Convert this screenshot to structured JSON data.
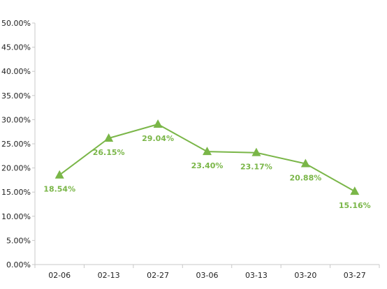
{
  "chart_data": {
    "type": "line",
    "categories": [
      "02-06",
      "02-13",
      "02-27",
      "03-06",
      "03-13",
      "03-20",
      "03-27"
    ],
    "series": [
      {
        "values": [
          18.54,
          26.15,
          29.04,
          23.4,
          23.17,
          20.88,
          15.16
        ],
        "labels": [
          "18.54%",
          "26.15%",
          "29.04%",
          "23.40%",
          "23.17%",
          "20.88%",
          "15.16%"
        ],
        "marker": "triangle",
        "color": "#7ab648"
      }
    ],
    "y_ticks": [
      "0.00%",
      "5.00%",
      "10.00%",
      "15.00%",
      "20.00%",
      "25.00%",
      "30.00%",
      "35.00%",
      "40.00%",
      "45.00%",
      "50.00%"
    ],
    "ylim": [
      0,
      50
    ],
    "grid": false,
    "title": "",
    "xlabel": "",
    "ylabel": ""
  }
}
